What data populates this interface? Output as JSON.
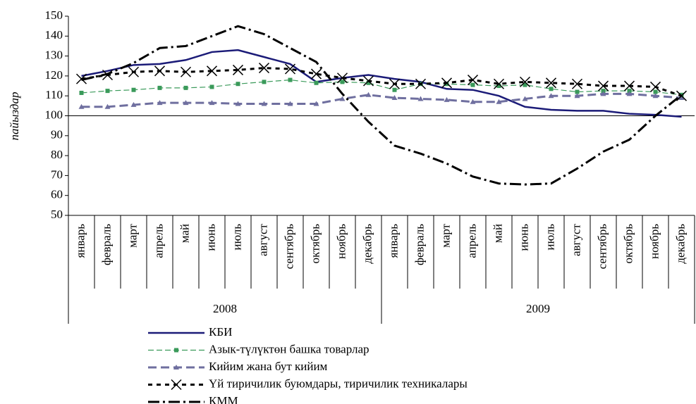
{
  "chart_data": {
    "type": "line",
    "y_label": "пайыздар",
    "categories": [
      "январь",
      "февраль",
      "март",
      "апрель",
      "май",
      "июнь",
      "июль",
      "август",
      "сентябрь",
      "октябрь",
      "ноябрь",
      "декабрь",
      "январь",
      "февраль",
      "март",
      "апрель",
      "май",
      "июнь",
      "июль",
      "август",
      "сентябрь",
      "октябрь",
      "ноябрь",
      "декабрь"
    ],
    "groups": [
      {
        "label": "2008",
        "span": 12
      },
      {
        "label": "2009",
        "span": 12
      }
    ],
    "ylim": [
      50,
      150
    ],
    "yticks": [
      50,
      60,
      70,
      80,
      90,
      100,
      110,
      120,
      130,
      140,
      150
    ],
    "reference_line": 100,
    "series": [
      {
        "name": "КБИ",
        "color": "#1b1b78",
        "marker": "none",
        "values": [
          120,
          122.5,
          125.5,
          126,
          128,
          132,
          133,
          129.5,
          126,
          117,
          119,
          120.5,
          118.5,
          117,
          113.5,
          113,
          110,
          104.5,
          103,
          102.5,
          102.5,
          101,
          100.5,
          99.5
        ]
      },
      {
        "name": "Азык-түлүктөн башка товарлар",
        "color": "#3a9a5a",
        "marker": "square",
        "values": [
          111.5,
          112.5,
          113,
          114,
          114,
          114.5,
          116,
          117,
          118,
          116.5,
          117,
          116.5,
          113,
          116,
          116,
          115.5,
          115,
          115.5,
          113.5,
          112,
          112.5,
          112.5,
          112,
          110.5
        ]
      },
      {
        "name": "Кийим жана бут кийим",
        "color": "#6f6f9f",
        "marker": "triangle",
        "values": [
          104.5,
          104.5,
          105.5,
          106.5,
          106.5,
          106.5,
          106,
          106,
          106,
          106,
          108.5,
          110.5,
          109,
          108.5,
          108,
          107,
          107,
          108.5,
          110,
          110,
          111,
          111,
          110,
          109
        ]
      },
      {
        "name": "Үй тиричилик буюмдары, тиричилик техникалары",
        "color": "#000000",
        "marker": "x",
        "values": [
          118.5,
          120.5,
          122,
          122.5,
          122,
          122.5,
          123,
          124,
          123.5,
          121,
          119,
          117.5,
          116,
          116,
          116.5,
          118,
          116,
          117,
          116.5,
          116,
          115,
          115,
          114.5,
          110
        ]
      },
      {
        "name": "КММ",
        "color": "#000000",
        "marker": "none",
        "values": [
          118,
          121,
          126.5,
          134,
          135,
          140,
          145,
          141,
          134,
          127,
          111,
          97,
          85,
          81,
          76,
          69.5,
          66,
          65.5,
          66,
          73.5,
          82,
          88,
          100,
          110.5
        ]
      }
    ]
  }
}
